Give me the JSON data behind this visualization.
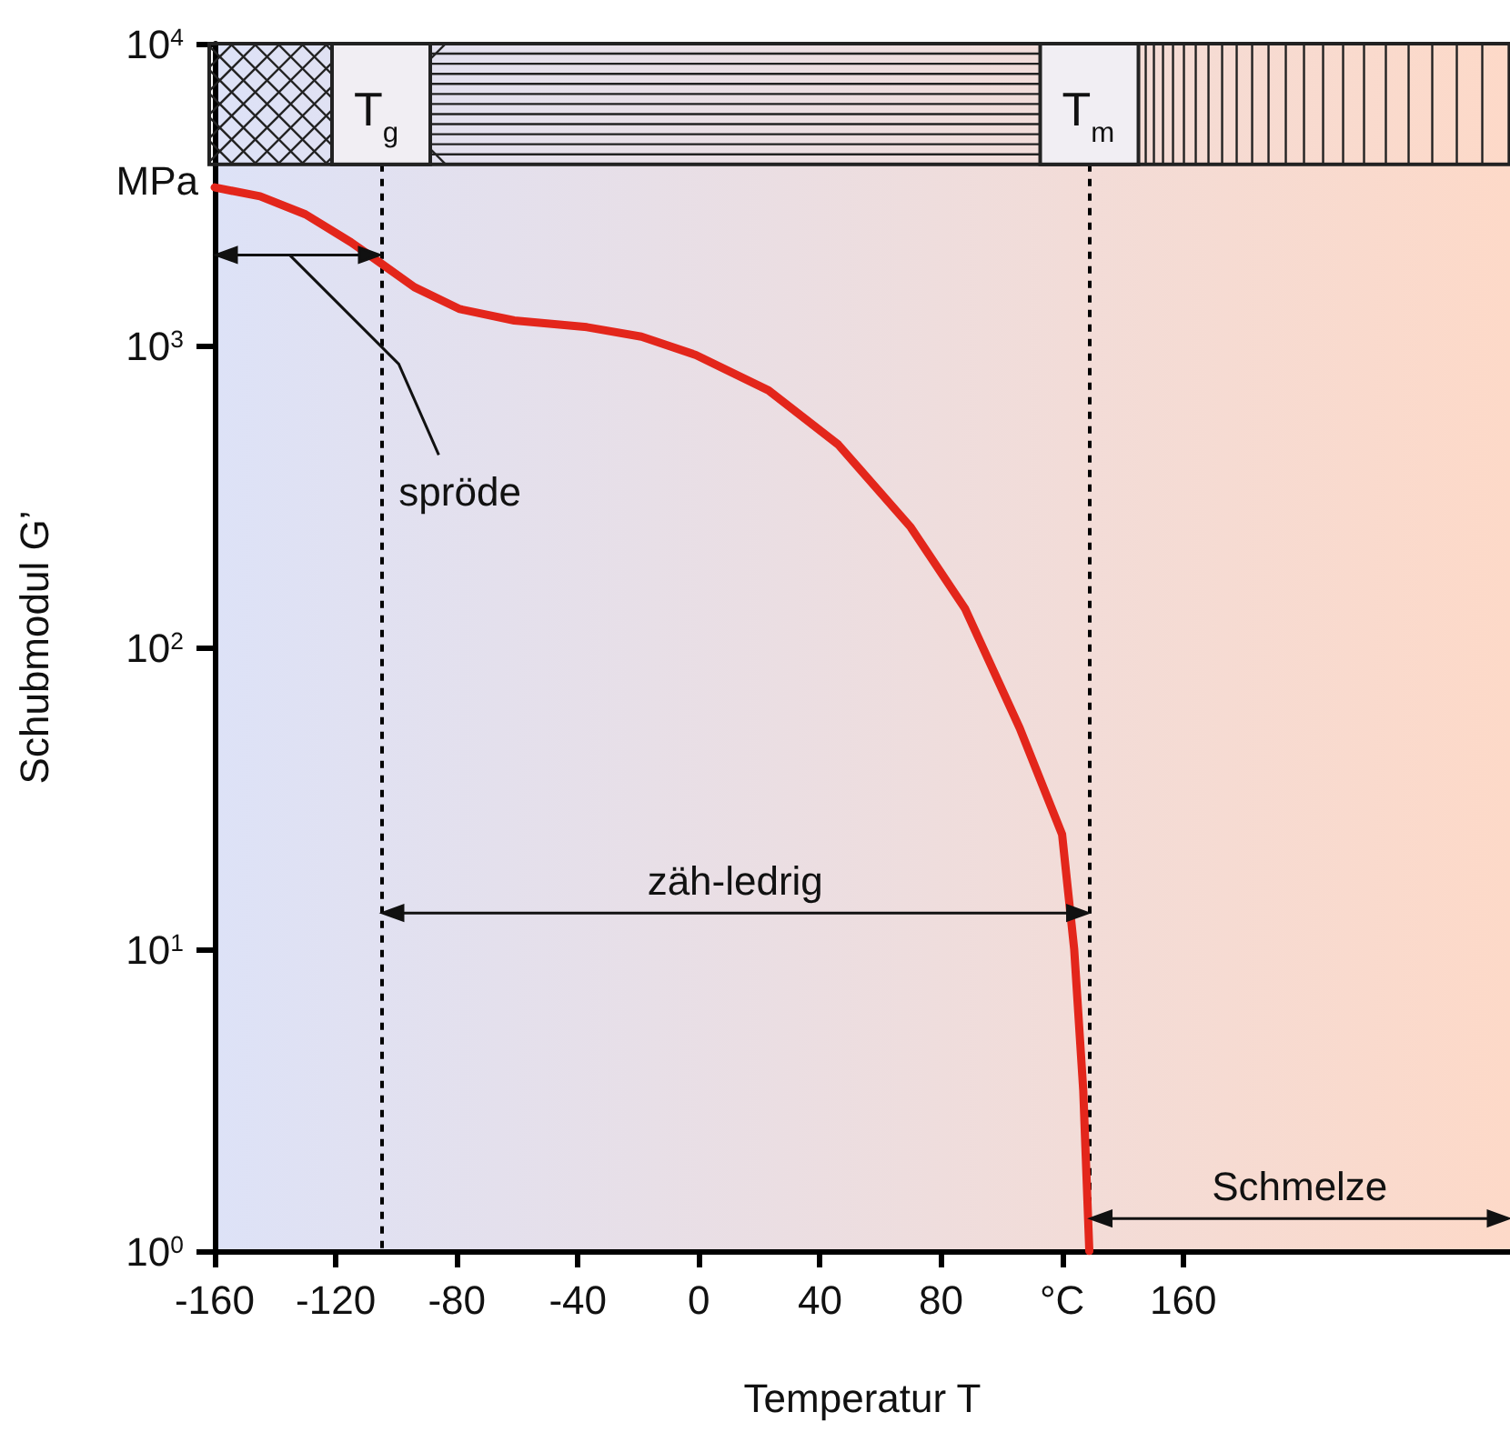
{
  "chart_data": {
    "type": "line",
    "xlabel": "Temperatur T",
    "ylabel": "Schubmodul G’",
    "color": "#e3261b",
    "x": [
      -160,
      -145,
      -130,
      -115,
      -105,
      -94,
      -79,
      -61,
      -37,
      -19,
      -1,
      23,
      46,
      70,
      88,
      106,
      120,
      124,
      127,
      129
    ],
    "values": [
      3340,
      3120,
      2720,
      2200,
      1870,
      1560,
      1320,
      1210,
      1150,
      1070,
      930,
      710,
      470,
      250,
      134,
      54,
      24,
      10,
      3.4,
      1
    ],
    "xlim": [
      -160,
      268
    ],
    "xticks": [
      -160,
      -120,
      -80,
      -40,
      0,
      40,
      80,
      {
        "value": 120,
        "label": "°C"
      },
      160
    ],
    "ylim": [
      1,
      10000
    ],
    "yticks": [
      {
        "value": 1,
        "label": "10$^{0}$"
      },
      {
        "value": 10,
        "label": "10$^{1}$"
      },
      {
        "value": 100,
        "label": "10$^{2}$"
      },
      {
        "value": 1000,
        "label": "10$^{3}$"
      },
      {
        "value": 10000,
        "label": "10$^{4}$"
      }
    ],
    "log": true,
    "ref_lines": [
      {
        "axis": "x",
        "value": -105,
        "label": "T$_{g}$",
        "line_style": "dashed",
        "color": "#000000"
      },
      {
        "axis": "x",
        "value": 129,
        "label": "T$_{m}$",
        "line_style": "dashed",
        "color": "#000000"
      }
    ],
    "annotations": [
      "MPa",
      "spröde",
      "zäh-ledrig",
      "Schmelze"
    ]
  }
}
